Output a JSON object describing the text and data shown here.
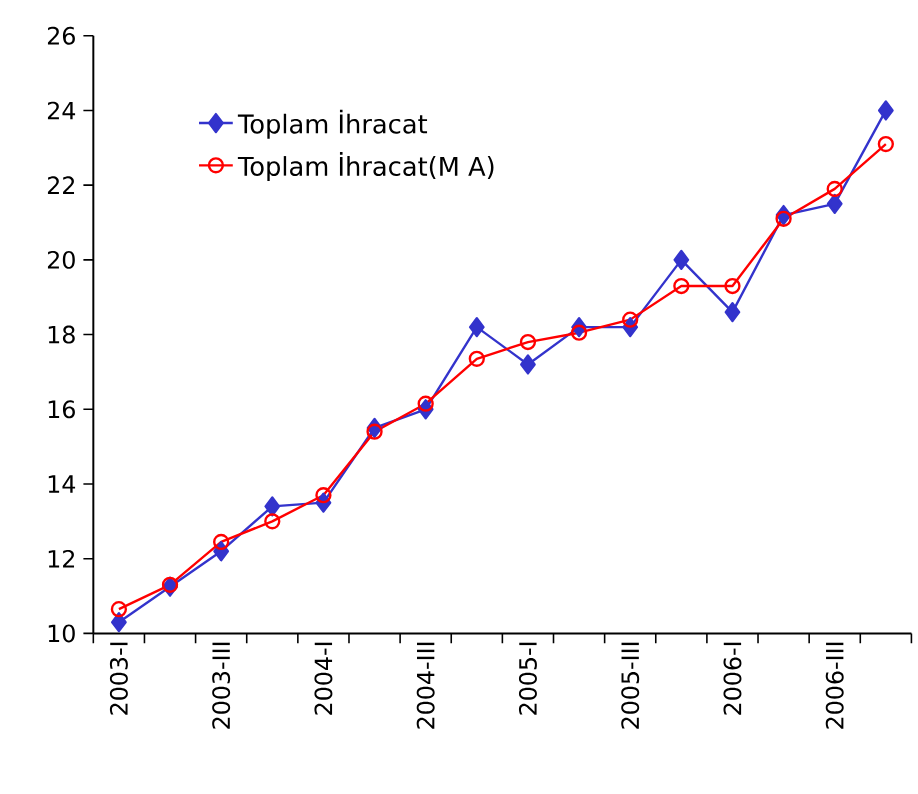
{
  "chart_data": {
    "type": "line",
    "categories": [
      "2003-I",
      null,
      "2003-III",
      null,
      "2004-I",
      null,
      "2004-III",
      null,
      "2005-I",
      null,
      "2005-III",
      null,
      "2006-I",
      null,
      "2006-III",
      null
    ],
    "series": [
      {
        "name": "Toplam İhracat",
        "color": "#3333cc",
        "marker": "diamond",
        "values": [
          10.3,
          11.25,
          12.2,
          13.4,
          13.5,
          15.5,
          16.0,
          18.2,
          17.2,
          18.2,
          18.2,
          20.0,
          18.6,
          21.2,
          21.5,
          24.0
        ]
      },
      {
        "name": "Toplam İhracat(M A)",
        "color": "#ff0000",
        "marker": "circle",
        "values": [
          10.65,
          11.3,
          12.45,
          13.0,
          13.7,
          15.4,
          16.15,
          17.35,
          17.8,
          18.05,
          18.4,
          19.3,
          19.3,
          21.1,
          21.9,
          23.1
        ]
      }
    ],
    "ylim": [
      10,
      26
    ],
    "yticks": [
      10,
      12,
      14,
      16,
      18,
      20,
      22,
      24,
      26
    ],
    "grid": false,
    "legend": "top left",
    "line_style": "solid"
  }
}
